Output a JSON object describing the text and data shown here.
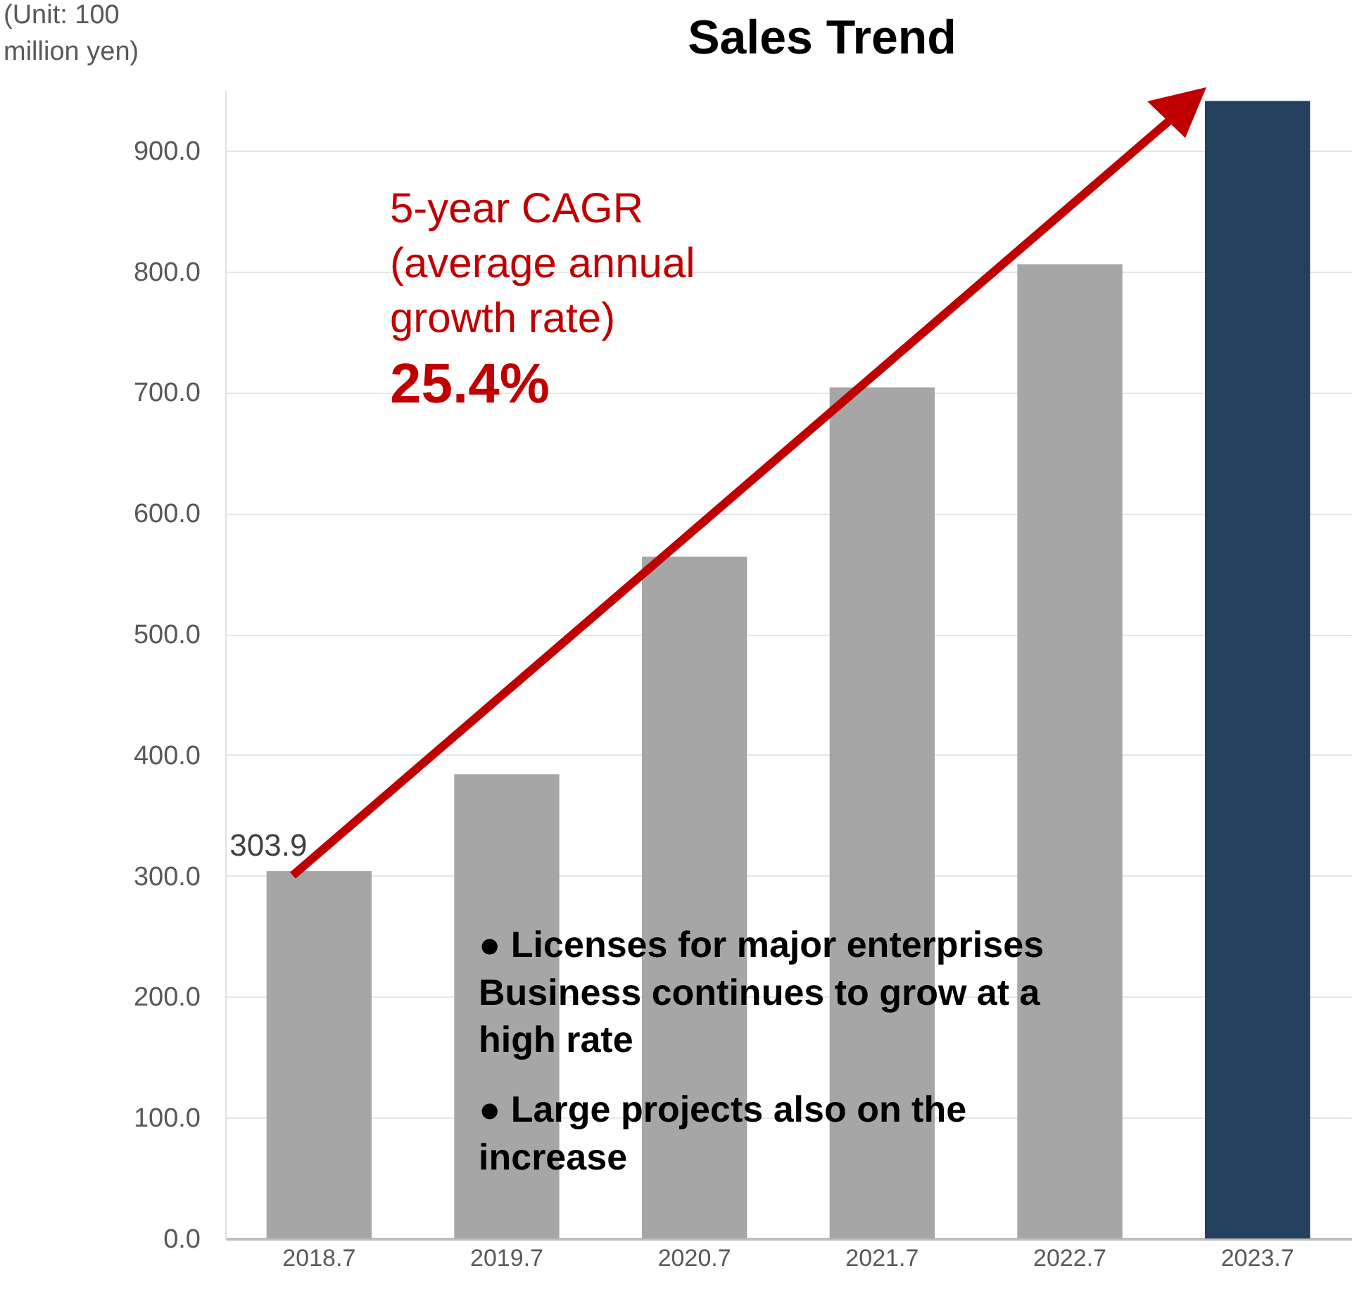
{
  "chart_data": {
    "type": "bar",
    "title": "Sales Trend",
    "ylabel": "(Unit: 100\nmillion yen)",
    "categories": [
      "2018.7",
      "2019.7",
      "2020.7",
      "2021.7",
      "2022.7",
      "2023.7"
    ],
    "values": [
      303.9,
      384,
      564,
      704,
      806,
      941
    ],
    "colors": [
      "#a6a6a6",
      "#a6a6a6",
      "#a6a6a6",
      "#a6a6a6",
      "#a6a6a6",
      "#253f5e"
    ],
    "value_labels": [
      "303.9",
      null,
      null,
      null,
      null,
      null
    ],
    "ylim": [
      0,
      950
    ],
    "yticks": [
      {
        "value": 0,
        "label": "0.0"
      },
      {
        "value": 100,
        "label": "100.0"
      },
      {
        "value": 200,
        "label": "200.0"
      },
      {
        "value": 300,
        "label": "300.0"
      },
      {
        "value": 400,
        "label": "400.0"
      },
      {
        "value": 500,
        "label": "500.0"
      },
      {
        "value": 600,
        "label": "600.0"
      },
      {
        "value": 700,
        "label": "700.0"
      },
      {
        "value": 800,
        "label": "800.0"
      },
      {
        "value": 900,
        "label": "900.0"
      }
    ],
    "grid": "y",
    "annotations": [
      "5-year CAGR\n(average annual\ngrowth rate)",
      "25.4%",
      "●    Licenses for major enterprises\n      Business continues to grow at a\n      high rate",
      "●    Large projects also on the\n      increase"
    ]
  }
}
